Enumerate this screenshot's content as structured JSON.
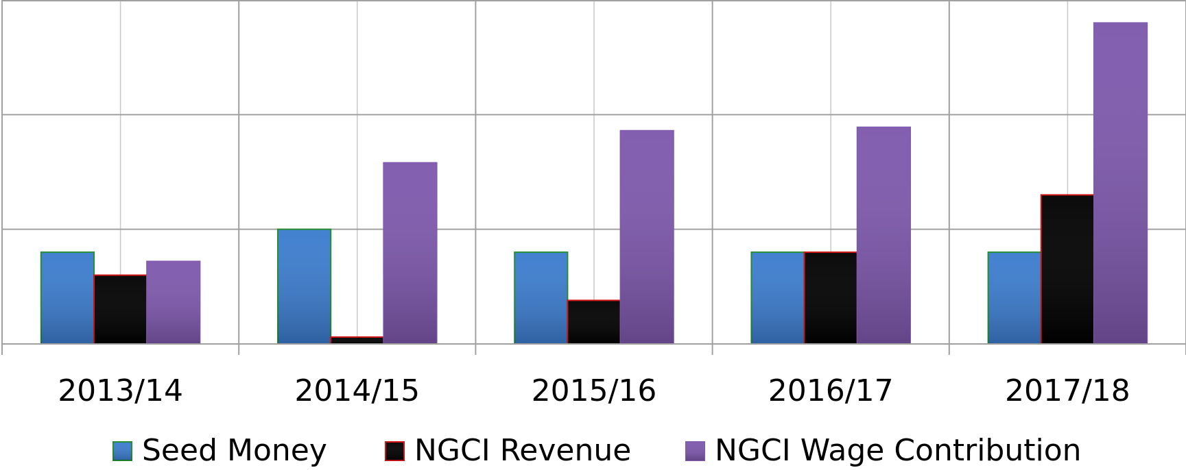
{
  "chart_data": {
    "type": "bar",
    "categories": [
      "2013/14",
      "2014/15",
      "2015/16",
      "2016/17",
      "2017/18"
    ],
    "series": [
      {
        "name": "Seed Money",
        "color": "#3b7cce",
        "edgecolor": "#1f8a2e",
        "values": [
          0.8,
          1.0,
          0.8,
          0.8,
          0.8
        ]
      },
      {
        "name": "NGCI Revenue",
        "color": "#000000",
        "edgecolor": "#d01010",
        "values": [
          0.6,
          0.06,
          0.38,
          0.8,
          1.3
        ]
      },
      {
        "name": "NGCI Wage Contribution",
        "color": "#7e58ad",
        "edgecolor": "#7e58ad",
        "values": [
          0.72,
          1.58,
          1.86,
          1.89,
          2.8
        ]
      }
    ],
    "ylim": [
      0,
      3
    ],
    "yticks": [
      0,
      1,
      2,
      3
    ],
    "grid": true,
    "legend": "bottom"
  }
}
